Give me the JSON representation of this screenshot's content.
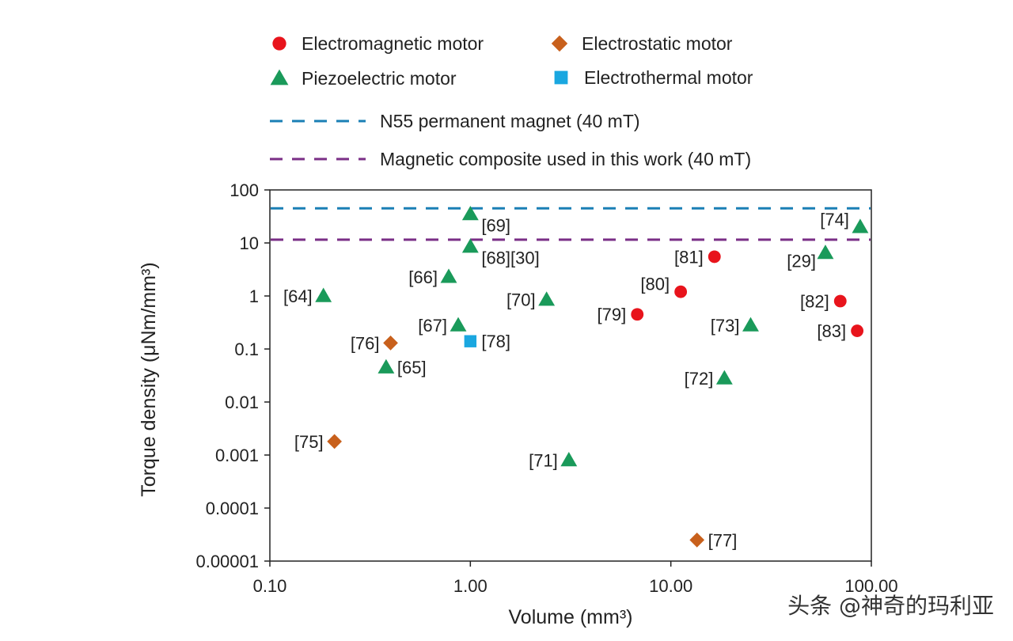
{
  "chart_data": {
    "type": "scatter",
    "xscale": "log",
    "yscale": "log",
    "xlabel": "Volume (mm³)",
    "ylabel": "Torque density (μNm/mm³)",
    "xlim": [
      0.1,
      100
    ],
    "ylim": [
      1e-05,
      100
    ],
    "x_ticks": [
      {
        "value": 0.1,
        "label": "0.10"
      },
      {
        "value": 1,
        "label": "1.00"
      },
      {
        "value": 10,
        "label": "10.00"
      },
      {
        "value": 100,
        "label": "100.00"
      }
    ],
    "y_ticks": [
      {
        "value": 100,
        "label": "100"
      },
      {
        "value": 10,
        "label": "10"
      },
      {
        "value": 1,
        "label": "1"
      },
      {
        "value": 0.1,
        "label": "0.1"
      },
      {
        "value": 0.01,
        "label": "0.01"
      },
      {
        "value": 0.001,
        "label": "0.001"
      },
      {
        "value": 0.0001,
        "label": "0.0001"
      },
      {
        "value": 1e-05,
        "label": "0.00001"
      }
    ],
    "series": [
      {
        "name": "Electromagnetic motor",
        "marker": "circle",
        "color": "#e8141c",
        "points": [
          {
            "x": 6.8,
            "y": 0.45,
            "label": "[79]",
            "label_pos": "left"
          },
          {
            "x": 11.2,
            "y": 1.2,
            "label": "[80]",
            "label_pos": "left-up"
          },
          {
            "x": 16.5,
            "y": 5.5,
            "label": "[81]",
            "label_pos": "left"
          },
          {
            "x": 70,
            "y": 0.8,
            "label": "[82]",
            "label_pos": "left"
          },
          {
            "x": 85,
            "y": 0.22,
            "label": "[83]",
            "label_pos": "left"
          }
        ]
      },
      {
        "name": "Electrostatic motor",
        "marker": "diamond",
        "color": "#c8601c",
        "points": [
          {
            "x": 0.21,
            "y": 0.0018,
            "label": "[75]",
            "label_pos": "left"
          },
          {
            "x": 0.4,
            "y": 0.13,
            "label": "[76]",
            "label_pos": "left"
          },
          {
            "x": 13.5,
            "y": 2.5e-05,
            "label": "[77]",
            "label_pos": "right"
          }
        ]
      },
      {
        "name": "Piezoelectric motor",
        "marker": "triangle",
        "color": "#1a9a5a",
        "points": [
          {
            "x": 0.185,
            "y": 1.0,
            "label": "[64]",
            "label_pos": "left"
          },
          {
            "x": 0.38,
            "y": 0.045,
            "label": "[65]",
            "label_pos": "right"
          },
          {
            "x": 0.78,
            "y": 2.3,
            "label": "[66]",
            "label_pos": "left"
          },
          {
            "x": 0.87,
            "y": 0.28,
            "label": "[67]",
            "label_pos": "left"
          },
          {
            "x": 1.0,
            "y": 8.5,
            "label": "[68][30]",
            "label_pos": "right-down"
          },
          {
            "x": 1.0,
            "y": 35,
            "label": "[69]",
            "label_pos": "right-down"
          },
          {
            "x": 2.4,
            "y": 0.85,
            "label": "[70]",
            "label_pos": "left"
          },
          {
            "x": 3.1,
            "y": 0.0008,
            "label": "[71]",
            "label_pos": "left"
          },
          {
            "x": 18.5,
            "y": 0.028,
            "label": "[72]",
            "label_pos": "left"
          },
          {
            "x": 25,
            "y": 0.28,
            "label": "[73]",
            "label_pos": "left"
          },
          {
            "x": 88,
            "y": 20,
            "label": "[74]",
            "label_pos": "left-up"
          },
          {
            "x": 59,
            "y": 6.5,
            "label": "[29]",
            "label_pos": "left-down"
          }
        ]
      },
      {
        "name": "Electrothermal motor",
        "marker": "square",
        "color": "#1aa7e0",
        "points": [
          {
            "x": 1.0,
            "y": 0.14,
            "label": "[78]",
            "label_pos": "right"
          }
        ]
      }
    ],
    "reference_lines": [
      {
        "name": "N55 permanent magnet (40 mT)",
        "y": 45,
        "color": "#1a7fb5",
        "style": "dashed"
      },
      {
        "name": "Magnetic composite used in this work (40 mT)",
        "y": 11.5,
        "color": "#7a2e86",
        "style": "dashed"
      }
    ],
    "legend_position": "top"
  },
  "watermark": "头条 @神奇的玛利亚"
}
